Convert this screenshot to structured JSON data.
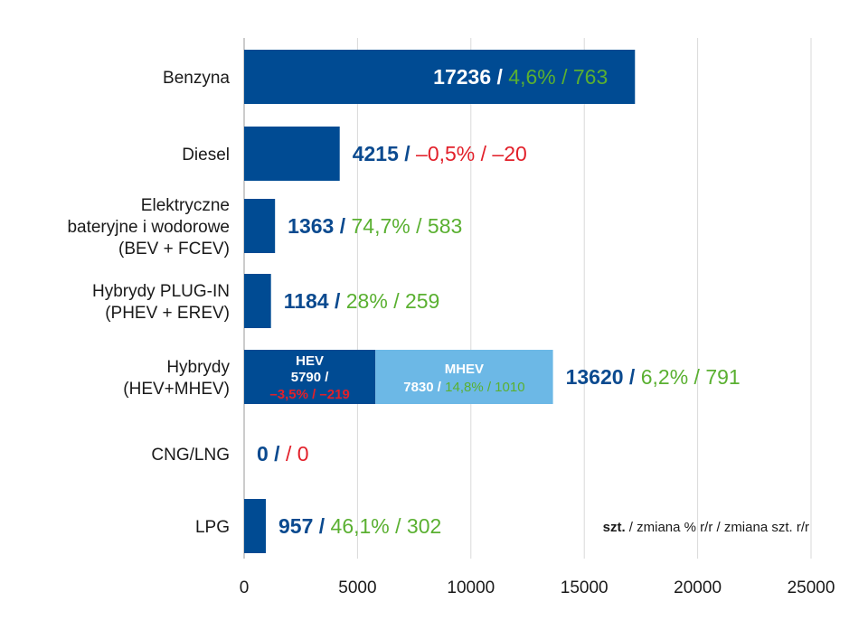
{
  "chart_data": {
    "type": "bar",
    "orientation": "horizontal",
    "xlim": [
      0,
      25000
    ],
    "x_ticks": [
      "0",
      "5000",
      "10000",
      "15000",
      "20000",
      "25000"
    ],
    "grid": true,
    "colors": {
      "bar": "#004b93",
      "mhev": "#6cb8e6",
      "value": "#0b4a8f",
      "positive": "#5ab031",
      "negative": "#e2202a"
    },
    "units_note": {
      "bold": "szt.",
      "rest": " / zmiana % r/r / zmiana szt. r/r"
    },
    "categories": [
      {
        "lines": [
          "Benzyna"
        ],
        "value": 17236,
        "value_label": "17236",
        "sep": " / ",
        "change_label": "4,6% / 763",
        "change_sign": "positive",
        "label_inside": true
      },
      {
        "lines": [
          "Diesel"
        ],
        "value": 4215,
        "value_label": "4215",
        "sep": " / ",
        "change_label": "–0,5% / –20",
        "change_sign": "negative"
      },
      {
        "lines": [
          "Elektryczne",
          "bateryjne i wodorowe",
          "(BEV + FCEV)"
        ],
        "value": 1363,
        "value_label": "1363",
        "sep": " / ",
        "change_label": "74,7% / 583",
        "change_sign": "positive"
      },
      {
        "lines": [
          "Hybrydy PLUG-IN",
          "(PHEV + EREV)"
        ],
        "value": 1184,
        "value_label": "1184",
        "sep": " / ",
        "change_label": "28% / 259",
        "change_sign": "positive"
      },
      {
        "lines": [
          "Hybrydy",
          "(HEV+MHEV)"
        ],
        "value": 13620,
        "value_label": "13620",
        "sep": " / ",
        "change_label": "6,2% / 791",
        "change_sign": "positive",
        "segments": [
          {
            "name": "HEV",
            "value": 5790,
            "value_text": "5790 /",
            "change_text": "–3,5% / –219",
            "color": "#004b93",
            "change_sign": "negative"
          },
          {
            "name": "MHEV",
            "value": 7830,
            "value_text": "7830",
            "sep": " / ",
            "change_text": "14,8% / 1010",
            "color": "#6cb8e6",
            "change_sign": "positive"
          }
        ]
      },
      {
        "lines": [
          "CNG/LNG"
        ],
        "value": 0,
        "value_label": "0",
        "sep": " /  ",
        "change_label": " / 0",
        "change_sign": "negative"
      },
      {
        "lines": [
          "LPG"
        ],
        "value": 957,
        "value_label": "957",
        "sep": " / ",
        "change_label": "46,1% / 302",
        "change_sign": "positive"
      }
    ]
  }
}
